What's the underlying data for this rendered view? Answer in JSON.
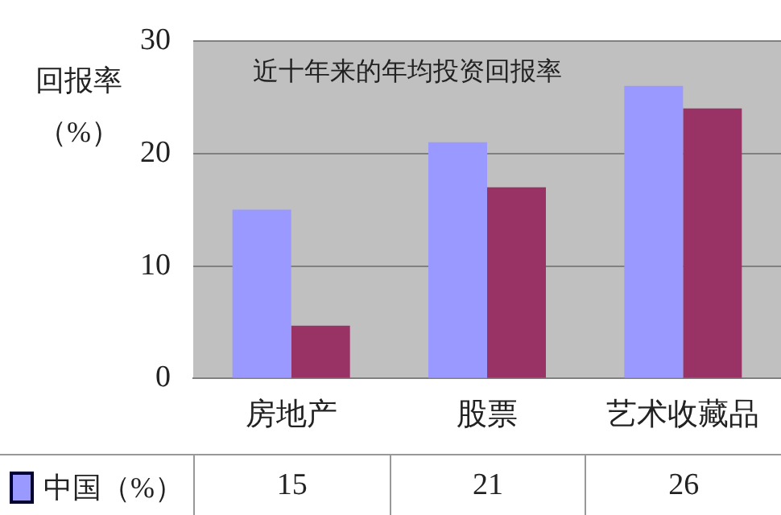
{
  "chart_data": {
    "type": "bar",
    "title": "近十年来的年均投资回报率",
    "ylabel": "回报率（%）",
    "categories": [
      "房地产",
      "股票",
      "艺术收藏品"
    ],
    "series": [
      {
        "name": "中国（%）",
        "color": "#9999ff",
        "values": [
          15,
          21,
          26
        ],
        "value_labels": [
          "15",
          "21",
          "26"
        ]
      },
      {
        "color": "#993366",
        "values": [
          4.7,
          17,
          24
        ]
      }
    ],
    "ylim": [
      0,
      30
    ],
    "yticks": [
      0,
      10,
      20,
      30
    ],
    "grid": "y",
    "legend": "bottom"
  }
}
